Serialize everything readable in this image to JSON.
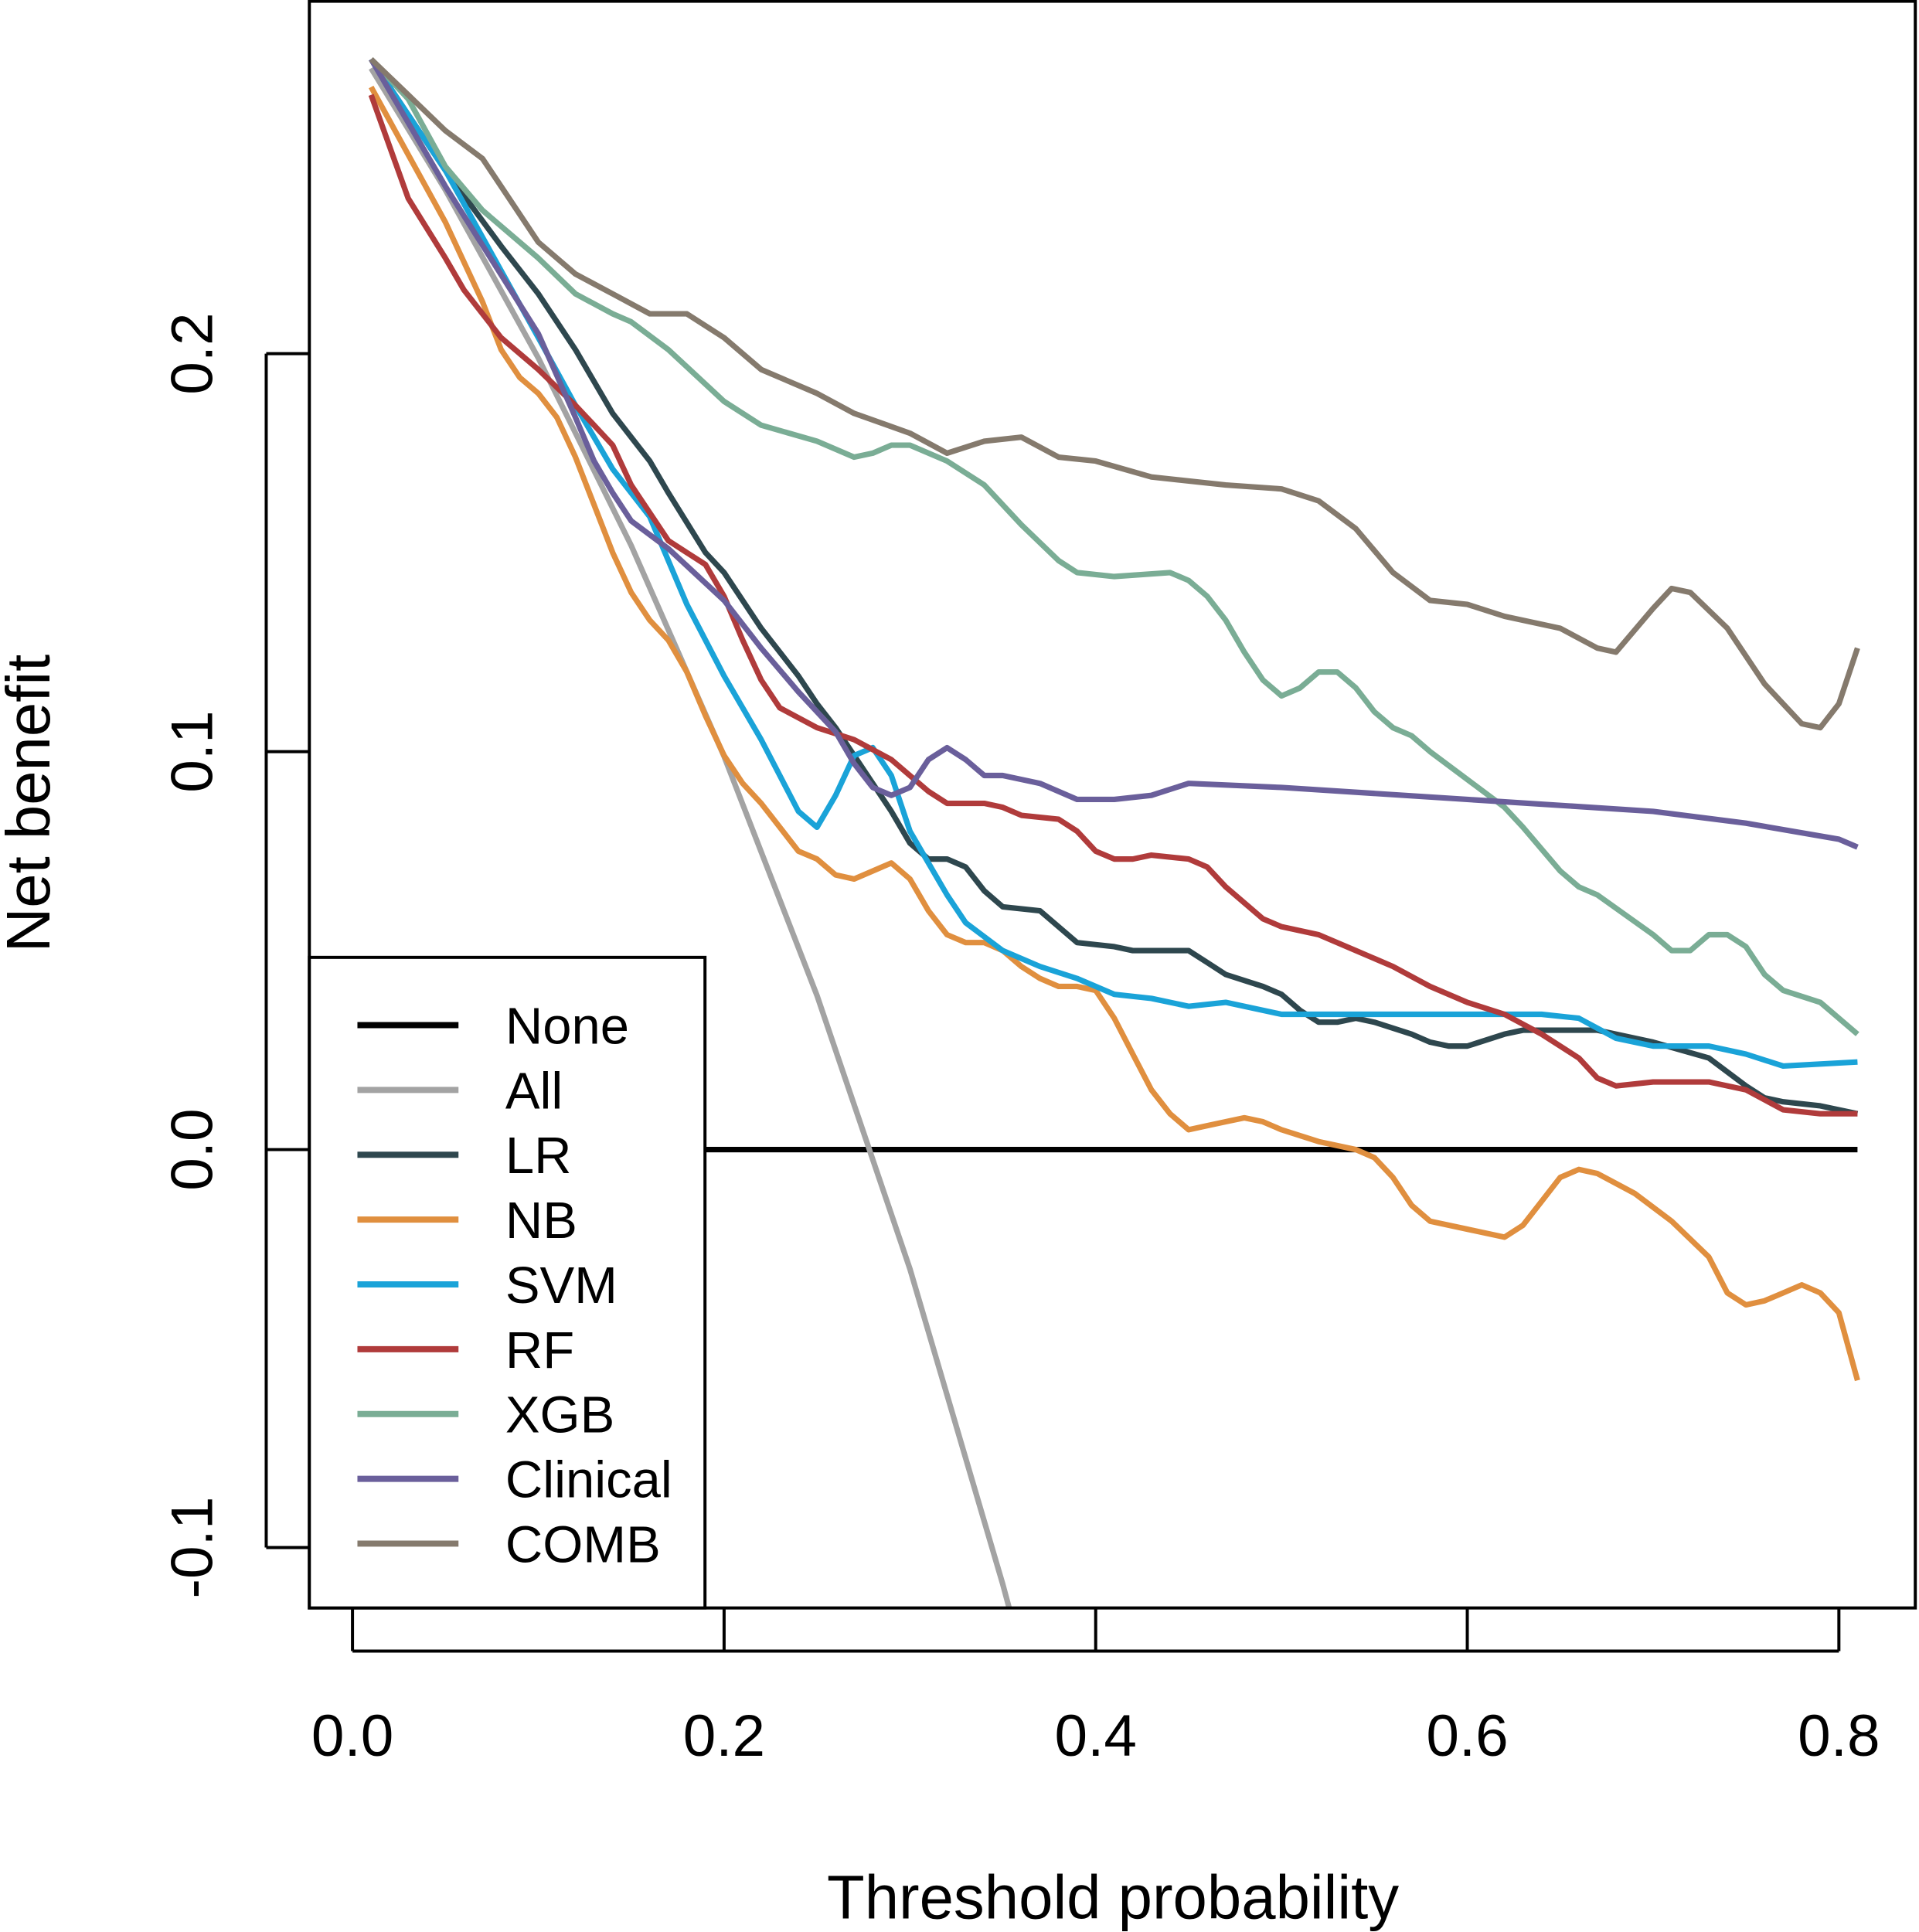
{
  "chart_data": {
    "type": "line",
    "title": "",
    "xlabel": "Threshold probability",
    "ylabel": "Net benefit",
    "xlim": [
      -0.023,
      0.842
    ],
    "ylim": [
      -0.115,
      0.289
    ],
    "xticks": [
      0.0,
      0.2,
      0.4,
      0.6,
      0.8
    ],
    "xtick_labels": [
      "0.0",
      "0.2",
      "0.4",
      "0.6",
      "0.8"
    ],
    "yticks": [
      -0.1,
      0.0,
      0.1,
      0.2
    ],
    "ytick_labels": [
      "-0.1",
      "0.0",
      "0.1",
      "0.2"
    ],
    "grid": false,
    "legend_placement": "bottom-left",
    "series": [
      {
        "name": "None",
        "color": "#000000",
        "x": [
          0.01,
          0.81
        ],
        "y": [
          0,
          0
        ]
      },
      {
        "name": "All",
        "color": "#a3a3a3",
        "x": [
          0.01,
          0.05,
          0.1,
          0.15,
          0.2,
          0.25,
          0.3,
          0.35,
          0.36
        ],
        "y": [
          0.2717,
          0.2411,
          0.1989,
          0.1518,
          0.0988,
          0.0387,
          -0.03,
          -0.1092,
          -0.1266
        ]
      },
      {
        "name": "LR",
        "color": "#2e474e",
        "x": [
          0.01,
          0.05,
          0.08,
          0.1,
          0.12,
          0.14,
          0.16,
          0.17,
          0.19,
          0.2,
          0.22,
          0.24,
          0.25,
          0.26,
          0.28,
          0.29,
          0.3,
          0.31,
          0.32,
          0.33,
          0.34,
          0.35,
          0.37,
          0.39,
          0.41,
          0.42,
          0.43,
          0.45,
          0.46,
          0.47,
          0.49,
          0.5,
          0.51,
          0.52,
          0.53,
          0.54,
          0.55,
          0.57,
          0.58,
          0.59,
          0.6,
          0.62,
          0.63,
          0.65,
          0.67,
          0.7,
          0.73,
          0.75,
          0.76,
          0.77,
          0.79,
          0.81
        ],
        "y": [
          0.274,
          0.246,
          0.227,
          0.215,
          0.201,
          0.185,
          0.173,
          0.165,
          0.15,
          0.145,
          0.131,
          0.119,
          0.112,
          0.106,
          0.092,
          0.085,
          0.077,
          0.073,
          0.073,
          0.071,
          0.065,
          0.061,
          0.06,
          0.052,
          0.051,
          0.05,
          0.05,
          0.05,
          0.047,
          0.044,
          0.041,
          0.039,
          0.035,
          0.032,
          0.032,
          0.033,
          0.032,
          0.029,
          0.027,
          0.026,
          0.026,
          0.029,
          0.03,
          0.03,
          0.03,
          0.027,
          0.023,
          0.016,
          0.013,
          0.012,
          0.011,
          0.009
        ]
      },
      {
        "name": "NB",
        "color": "#e08f3f",
        "x": [
          0.01,
          0.03,
          0.05,
          0.07,
          0.08,
          0.09,
          0.1,
          0.11,
          0.12,
          0.13,
          0.14,
          0.15,
          0.16,
          0.17,
          0.18,
          0.19,
          0.2,
          0.21,
          0.22,
          0.23,
          0.24,
          0.25,
          0.26,
          0.27,
          0.28,
          0.29,
          0.3,
          0.31,
          0.32,
          0.33,
          0.34,
          0.35,
          0.36,
          0.37,
          0.38,
          0.39,
          0.4,
          0.41,
          0.42,
          0.43,
          0.44,
          0.45,
          0.46,
          0.47,
          0.48,
          0.49,
          0.5,
          0.52,
          0.54,
          0.55,
          0.56,
          0.57,
          0.58,
          0.6,
          0.62,
          0.63,
          0.64,
          0.65,
          0.66,
          0.67,
          0.69,
          0.71,
          0.73,
          0.74,
          0.75,
          0.76,
          0.77,
          0.78,
          0.79,
          0.8,
          0.81
        ],
        "y": [
          0.267,
          0.25,
          0.233,
          0.213,
          0.201,
          0.194,
          0.19,
          0.184,
          0.174,
          0.162,
          0.15,
          0.14,
          0.133,
          0.128,
          0.12,
          0.109,
          0.099,
          0.092,
          0.087,
          0.081,
          0.075,
          0.073,
          0.069,
          0.068,
          0.07,
          0.072,
          0.068,
          0.06,
          0.054,
          0.052,
          0.052,
          0.05,
          0.046,
          0.043,
          0.041,
          0.041,
          0.04,
          0.033,
          0.024,
          0.015,
          0.009,
          0.005,
          0.006,
          0.007,
          0.008,
          0.007,
          0.005,
          0.002,
          0.0,
          -0.002,
          -0.007,
          -0.014,
          -0.018,
          -0.02,
          -0.022,
          -0.019,
          -0.013,
          -0.007,
          -0.005,
          -0.006,
          -0.011,
          -0.018,
          -0.027,
          -0.036,
          -0.039,
          -0.038,
          -0.036,
          -0.034,
          -0.036,
          -0.041,
          -0.058
        ]
      },
      {
        "name": "SVM",
        "color": "#1aa3d8",
        "x": [
          0.01,
          0.05,
          0.1,
          0.12,
          0.14,
          0.16,
          0.18,
          0.2,
          0.22,
          0.23,
          0.24,
          0.25,
          0.26,
          0.27,
          0.28,
          0.29,
          0.3,
          0.31,
          0.32,
          0.33,
          0.35,
          0.37,
          0.39,
          0.41,
          0.43,
          0.45,
          0.47,
          0.5,
          0.55,
          0.6,
          0.64,
          0.66,
          0.68,
          0.7,
          0.73,
          0.75,
          0.77,
          0.81
        ],
        "y": [
          0.274,
          0.246,
          0.204,
          0.187,
          0.171,
          0.159,
          0.137,
          0.119,
          0.103,
          0.094,
          0.085,
          0.081,
          0.089,
          0.099,
          0.101,
          0.094,
          0.08,
          0.072,
          0.064,
          0.057,
          0.05,
          0.046,
          0.043,
          0.039,
          0.038,
          0.036,
          0.037,
          0.034,
          0.034,
          0.034,
          0.034,
          0.033,
          0.028,
          0.026,
          0.026,
          0.024,
          0.021,
          0.022
        ]
      },
      {
        "name": "RF",
        "color": "#b03b3b",
        "x": [
          0.01,
          0.03,
          0.05,
          0.06,
          0.08,
          0.1,
          0.12,
          0.13,
          0.14,
          0.15,
          0.17,
          0.18,
          0.19,
          0.2,
          0.21,
          0.22,
          0.23,
          0.25,
          0.27,
          0.29,
          0.31,
          0.32,
          0.34,
          0.35,
          0.36,
          0.38,
          0.39,
          0.4,
          0.41,
          0.42,
          0.43,
          0.45,
          0.46,
          0.47,
          0.49,
          0.5,
          0.52,
          0.54,
          0.56,
          0.58,
          0.6,
          0.62,
          0.64,
          0.66,
          0.67,
          0.68,
          0.7,
          0.73,
          0.75,
          0.77,
          0.79,
          0.81
        ],
        "y": [
          0.265,
          0.239,
          0.224,
          0.216,
          0.204,
          0.196,
          0.187,
          0.182,
          0.177,
          0.167,
          0.153,
          0.15,
          0.147,
          0.139,
          0.128,
          0.118,
          0.111,
          0.106,
          0.103,
          0.098,
          0.09,
          0.087,
          0.087,
          0.086,
          0.084,
          0.083,
          0.08,
          0.075,
          0.073,
          0.073,
          0.074,
          0.073,
          0.071,
          0.066,
          0.058,
          0.056,
          0.054,
          0.05,
          0.046,
          0.041,
          0.037,
          0.034,
          0.029,
          0.023,
          0.018,
          0.016,
          0.017,
          0.017,
          0.015,
          0.01,
          0.009,
          0.009
        ]
      },
      {
        "name": "XGB",
        "color": "#7aad95",
        "x": [
          0.01,
          0.03,
          0.05,
          0.07,
          0.1,
          0.12,
          0.14,
          0.15,
          0.17,
          0.2,
          0.22,
          0.25,
          0.27,
          0.28,
          0.29,
          0.3,
          0.32,
          0.34,
          0.36,
          0.38,
          0.39,
          0.41,
          0.44,
          0.45,
          0.46,
          0.47,
          0.48,
          0.49,
          0.5,
          0.51,
          0.52,
          0.53,
          0.54,
          0.55,
          0.56,
          0.57,
          0.58,
          0.6,
          0.62,
          0.63,
          0.65,
          0.66,
          0.67,
          0.7,
          0.71,
          0.72,
          0.73,
          0.74,
          0.75,
          0.76,
          0.77,
          0.79,
          0.81
        ],
        "y": [
          0.274,
          0.264,
          0.247,
          0.236,
          0.224,
          0.215,
          0.21,
          0.208,
          0.201,
          0.188,
          0.182,
          0.178,
          0.174,
          0.175,
          0.177,
          0.177,
          0.173,
          0.167,
          0.157,
          0.148,
          0.145,
          0.144,
          0.145,
          0.143,
          0.139,
          0.133,
          0.125,
          0.118,
          0.114,
          0.116,
          0.12,
          0.12,
          0.116,
          0.11,
          0.106,
          0.104,
          0.1,
          0.093,
          0.086,
          0.081,
          0.07,
          0.066,
          0.064,
          0.054,
          0.05,
          0.05,
          0.054,
          0.054,
          0.051,
          0.044,
          0.04,
          0.037,
          0.029
        ]
      },
      {
        "name": "Clinical",
        "color": "#6a5f9b",
        "x": [
          0.01,
          0.05,
          0.1,
          0.12,
          0.13,
          0.14,
          0.15,
          0.17,
          0.2,
          0.22,
          0.24,
          0.26,
          0.27,
          0.28,
          0.29,
          0.3,
          0.31,
          0.32,
          0.33,
          0.34,
          0.35,
          0.37,
          0.39,
          0.41,
          0.43,
          0.45,
          0.5,
          0.6,
          0.7,
          0.75,
          0.8,
          0.81
        ],
        "y": [
          0.274,
          0.242,
          0.205,
          0.184,
          0.173,
          0.165,
          0.158,
          0.151,
          0.138,
          0.126,
          0.115,
          0.105,
          0.097,
          0.091,
          0.089,
          0.091,
          0.098,
          0.101,
          0.098,
          0.094,
          0.094,
          0.092,
          0.088,
          0.088,
          0.089,
          0.092,
          0.091,
          0.088,
          0.085,
          0.082,
          0.078,
          0.076
        ]
      },
      {
        "name": "COMB",
        "color": "#857a6d",
        "x": [
          0.01,
          0.03,
          0.05,
          0.07,
          0.08,
          0.1,
          0.12,
          0.14,
          0.16,
          0.18,
          0.2,
          0.22,
          0.25,
          0.27,
          0.3,
          0.32,
          0.34,
          0.36,
          0.38,
          0.4,
          0.43,
          0.47,
          0.5,
          0.52,
          0.54,
          0.56,
          0.58,
          0.6,
          0.62,
          0.65,
          0.67,
          0.68,
          0.7,
          0.71,
          0.72,
          0.74,
          0.76,
          0.78,
          0.79,
          0.8,
          0.81
        ],
        "y": [
          0.274,
          0.265,
          0.256,
          0.249,
          0.242,
          0.228,
          0.22,
          0.215,
          0.21,
          0.21,
          0.204,
          0.196,
          0.19,
          0.185,
          0.18,
          0.175,
          0.178,
          0.179,
          0.174,
          0.173,
          0.169,
          0.167,
          0.166,
          0.163,
          0.156,
          0.145,
          0.138,
          0.137,
          0.134,
          0.131,
          0.126,
          0.125,
          0.136,
          0.141,
          0.14,
          0.131,
          0.117,
          0.107,
          0.106,
          0.112,
          0.126
        ]
      }
    ]
  }
}
